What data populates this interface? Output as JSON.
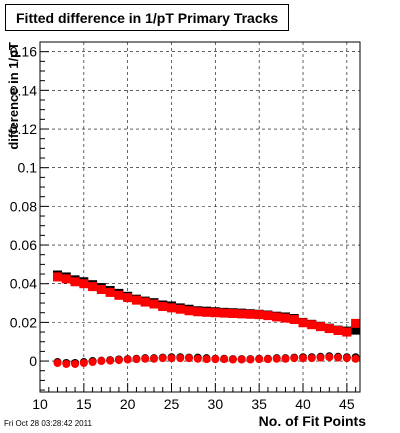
{
  "chart_data": {
    "type": "scatter",
    "title": "Fitted difference in 1/pT Primary Tracks",
    "xlabel": "No. of Fit Points",
    "ylabel": "difference in 1/pT",
    "xlim": [
      10,
      46.5
    ],
    "ylim": [
      -0.016,
      0.165
    ],
    "x_ticks": [
      10,
      15,
      20,
      25,
      30,
      35,
      40,
      45
    ],
    "y_ticks": [
      0,
      0.02,
      0.04,
      0.06,
      0.08,
      0.1,
      0.12,
      0.14,
      0.16
    ],
    "x_tick_labels": [
      "10",
      "15",
      "20",
      "25",
      "30",
      "35",
      "40",
      "45"
    ],
    "y_tick_labels": [
      "0",
      "0.02",
      "0.04",
      "0.06",
      "0.08",
      "0.1",
      "0.12",
      "0.14",
      "0.16"
    ],
    "grid": true,
    "x": [
      12,
      13,
      14,
      15,
      16,
      17,
      18,
      19,
      20,
      21,
      22,
      23,
      24,
      25,
      26,
      27,
      28,
      29,
      30,
      31,
      32,
      33,
      34,
      35,
      36,
      37,
      38,
      39,
      40,
      41,
      42,
      43,
      44,
      45,
      46
    ],
    "series": [
      {
        "color": "#000000",
        "marker": "square",
        "values": [
          0.0445,
          0.0435,
          0.042,
          0.041,
          0.0395,
          0.038,
          0.0365,
          0.035,
          0.0335,
          0.032,
          0.031,
          0.0302,
          0.029,
          0.0285,
          0.0275,
          0.0268,
          0.026,
          0.0258,
          0.0255,
          0.0252,
          0.025,
          0.0248,
          0.0245,
          0.0242,
          0.0238,
          0.0232,
          0.0228,
          0.022,
          0.02,
          0.019,
          0.018,
          0.017,
          0.016,
          0.0155,
          0.016
        ]
      },
      {
        "color": "#ff0000",
        "marker": "square",
        "values": [
          0.0435,
          0.0425,
          0.041,
          0.04,
          0.0385,
          0.037,
          0.0355,
          0.034,
          0.0328,
          0.0315,
          0.0305,
          0.0295,
          0.0282,
          0.0275,
          0.0268,
          0.026,
          0.0255,
          0.0252,
          0.025,
          0.0248,
          0.0246,
          0.0244,
          0.0242,
          0.024,
          0.0235,
          0.0228,
          0.0222,
          0.0215,
          0.0198,
          0.0188,
          0.0178,
          0.0168,
          0.0158,
          0.015,
          0.0195
        ]
      },
      {
        "color": "#000000",
        "marker": "circle",
        "values": [
          -0.0005,
          -0.001,
          -0.001,
          -0.0005,
          0,
          0.0002,
          0.0005,
          0.0008,
          0.001,
          0.0012,
          0.0015,
          0.0015,
          0.0018,
          0.002,
          0.002,
          0.0018,
          0.0018,
          0.0015,
          0.0012,
          0.0012,
          0.001,
          0.001,
          0.001,
          0.0012,
          0.0012,
          0.0015,
          0.0015,
          0.0018,
          0.002,
          0.002,
          0.0022,
          0.0025,
          0.0022,
          0.002,
          0.002
        ]
      },
      {
        "color": "#ff0000",
        "marker": "circle",
        "values": [
          -0.001,
          -0.0015,
          -0.0015,
          -0.001,
          -0.0005,
          0,
          0.0002,
          0.0005,
          0.0008,
          0.001,
          0.0012,
          0.0012,
          0.0015,
          0.0015,
          0.0015,
          0.0015,
          0.0012,
          0.001,
          0.001,
          0.001,
          0.0008,
          0.0008,
          0.0008,
          0.001,
          0.001,
          0.0012,
          0.0012,
          0.0015,
          0.0015,
          0.0015,
          0.0018,
          0.002,
          0.0018,
          0.0015,
          0.0012
        ]
      }
    ]
  },
  "footer_timestamp": "Fri Oct 28 03:28:42 2011"
}
